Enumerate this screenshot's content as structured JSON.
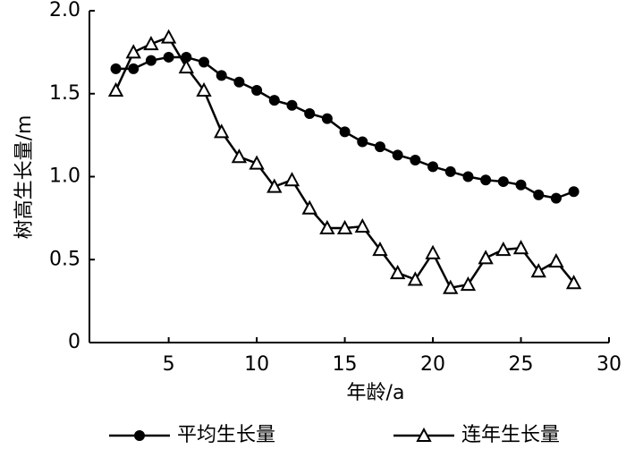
{
  "chart_data": {
    "type": "line",
    "x_label": "年龄/a",
    "y_label": "树高生长量/m",
    "x": [
      2,
      3,
      4,
      5,
      6,
      7,
      8,
      9,
      10,
      11,
      12,
      13,
      14,
      15,
      16,
      17,
      18,
      19,
      20,
      21,
      22,
      23,
      24,
      25,
      26,
      27,
      28
    ],
    "series": [
      {
        "name": "平均生长量",
        "color": "#000000",
        "marker": "circle",
        "values": [
          1.65,
          1.65,
          1.7,
          1.72,
          1.72,
          1.69,
          1.61,
          1.57,
          1.52,
          1.46,
          1.43,
          1.38,
          1.35,
          1.27,
          1.21,
          1.18,
          1.13,
          1.1,
          1.06,
          1.03,
          1.0,
          0.98,
          0.97,
          0.95,
          0.89,
          0.87,
          0.91
        ]
      },
      {
        "name": "连年生长量",
        "color": "#000000",
        "marker": "triangle",
        "values": [
          1.52,
          1.75,
          1.8,
          1.84,
          1.66,
          1.52,
          1.27,
          1.12,
          1.08,
          0.94,
          0.98,
          0.81,
          0.69,
          0.69,
          0.7,
          0.56,
          0.42,
          0.38,
          0.54,
          0.33,
          0.35,
          0.51,
          0.56,
          0.57,
          0.43,
          0.49,
          0.36
        ]
      }
    ],
    "xlim": [
      0.5,
      30
    ],
    "xticks": [
      5,
      10,
      15,
      20,
      25,
      30
    ],
    "ylim": [
      0,
      2
    ],
    "yticks": [
      0,
      0.5,
      {
        "value": 1,
        "label": "1.0"
      },
      1.5,
      {
        "value": 2,
        "label": "2.0"
      }
    ],
    "legend": "bottom"
  }
}
